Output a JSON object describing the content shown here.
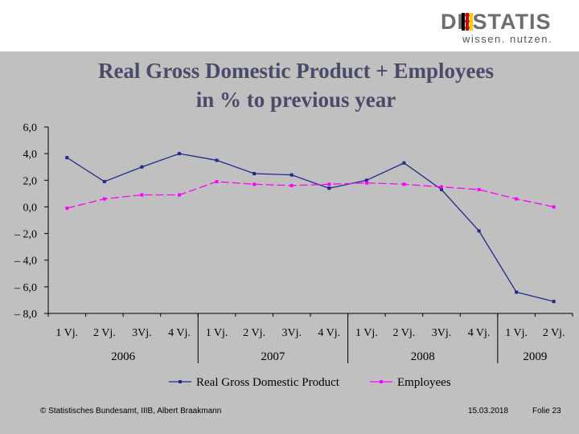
{
  "header": {
    "logo_text": "DESTATIS",
    "logo_tagline": "wissen. nutzen.",
    "logo_bar_colors": [
      "#000000",
      "#dd0000",
      "#ffcc00"
    ]
  },
  "chart_data": {
    "type": "line",
    "title_lines": [
      "Real Gross Domestic Product + Employees",
      "in % to previous year"
    ],
    "categories": [
      "1 Vj.",
      "2 Vj.",
      "3Vj.",
      "4 Vj.",
      "1 Vj.",
      "2 Vj.",
      "3Vj.",
      "4 Vj.",
      "1 Vj.",
      "2 Vj.",
      "3Vj.",
      "4 Vj.",
      "1 Vj.",
      "2 Vj."
    ],
    "groups": [
      {
        "label": "2006",
        "count": 4
      },
      {
        "label": "2007",
        "count": 4
      },
      {
        "label": "2008",
        "count": 4
      },
      {
        "label": "2009",
        "count": 2
      }
    ],
    "y_ticks": [
      "6,0",
      "4,0",
      "2,0",
      "0,0",
      "– 2,0",
      "– 4,0",
      "– 6,0",
      "– 8,0"
    ],
    "ylim": [
      -8,
      6
    ],
    "series": [
      {
        "name": "Real Gross Domestic Product",
        "color": "#1f2a8c",
        "values": [
          3.7,
          1.9,
          3.0,
          4.0,
          3.5,
          2.5,
          2.4,
          1.4,
          2.0,
          3.3,
          1.3,
          -1.8,
          -6.4,
          -7.1
        ]
      },
      {
        "name": "Employees",
        "color": "#ff00ff",
        "values": [
          -0.1,
          0.6,
          0.9,
          0.9,
          1.9,
          1.7,
          1.6,
          1.7,
          1.8,
          1.7,
          1.5,
          1.3,
          0.6,
          0.0
        ]
      }
    ],
    "grid": false,
    "legend_position": "bottom"
  },
  "footer": {
    "copyright": "© Statistisches Bundesamt, IIIB, Albert Braakmann",
    "date": "15.03.2018",
    "page": "Folie 23"
  }
}
